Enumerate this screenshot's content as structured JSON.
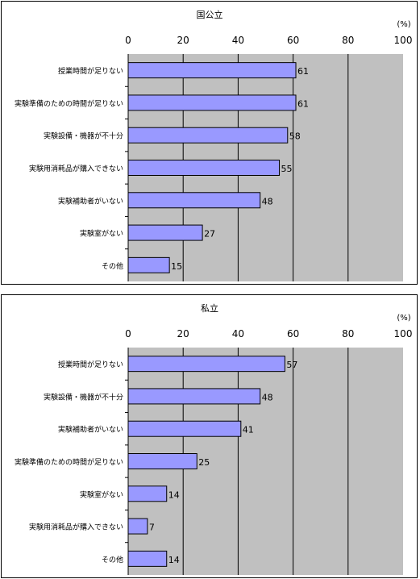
{
  "chart_data": [
    {
      "type": "bar",
      "orientation": "horizontal",
      "title": "国公立",
      "unit": "(%)",
      "xlim": [
        0,
        100
      ],
      "ticks": [
        0,
        20,
        40,
        60,
        80,
        100
      ],
      "grid": "vertical",
      "categories": [
        "授業時間が足りない",
        "実験準備のための時間が足りない",
        "実験設備・機器が不十分",
        "実験用消耗品が購入できない",
        "実験補助者がいない",
        "実験室がない",
        "その他"
      ],
      "values": [
        61,
        61,
        58,
        55,
        48,
        27,
        15
      ],
      "colors": {
        "bar": "#9999ff",
        "plot_bg": "#c0c0c0"
      }
    },
    {
      "type": "bar",
      "orientation": "horizontal",
      "title": "私立",
      "unit": "(%)",
      "xlim": [
        0,
        100
      ],
      "ticks": [
        0,
        20,
        40,
        60,
        80,
        100
      ],
      "grid": "vertical",
      "categories": [
        "授業時間が足りない",
        "実験設備・機器が不十分",
        "実験補助者がいない",
        "実験準備のための時間が足りない",
        "実験室がない",
        "実験用消耗品が購入できない",
        "その他"
      ],
      "values": [
        57,
        48,
        41,
        25,
        14,
        7,
        14
      ],
      "colors": {
        "bar": "#9999ff",
        "plot_bg": "#c0c0c0"
      }
    }
  ]
}
